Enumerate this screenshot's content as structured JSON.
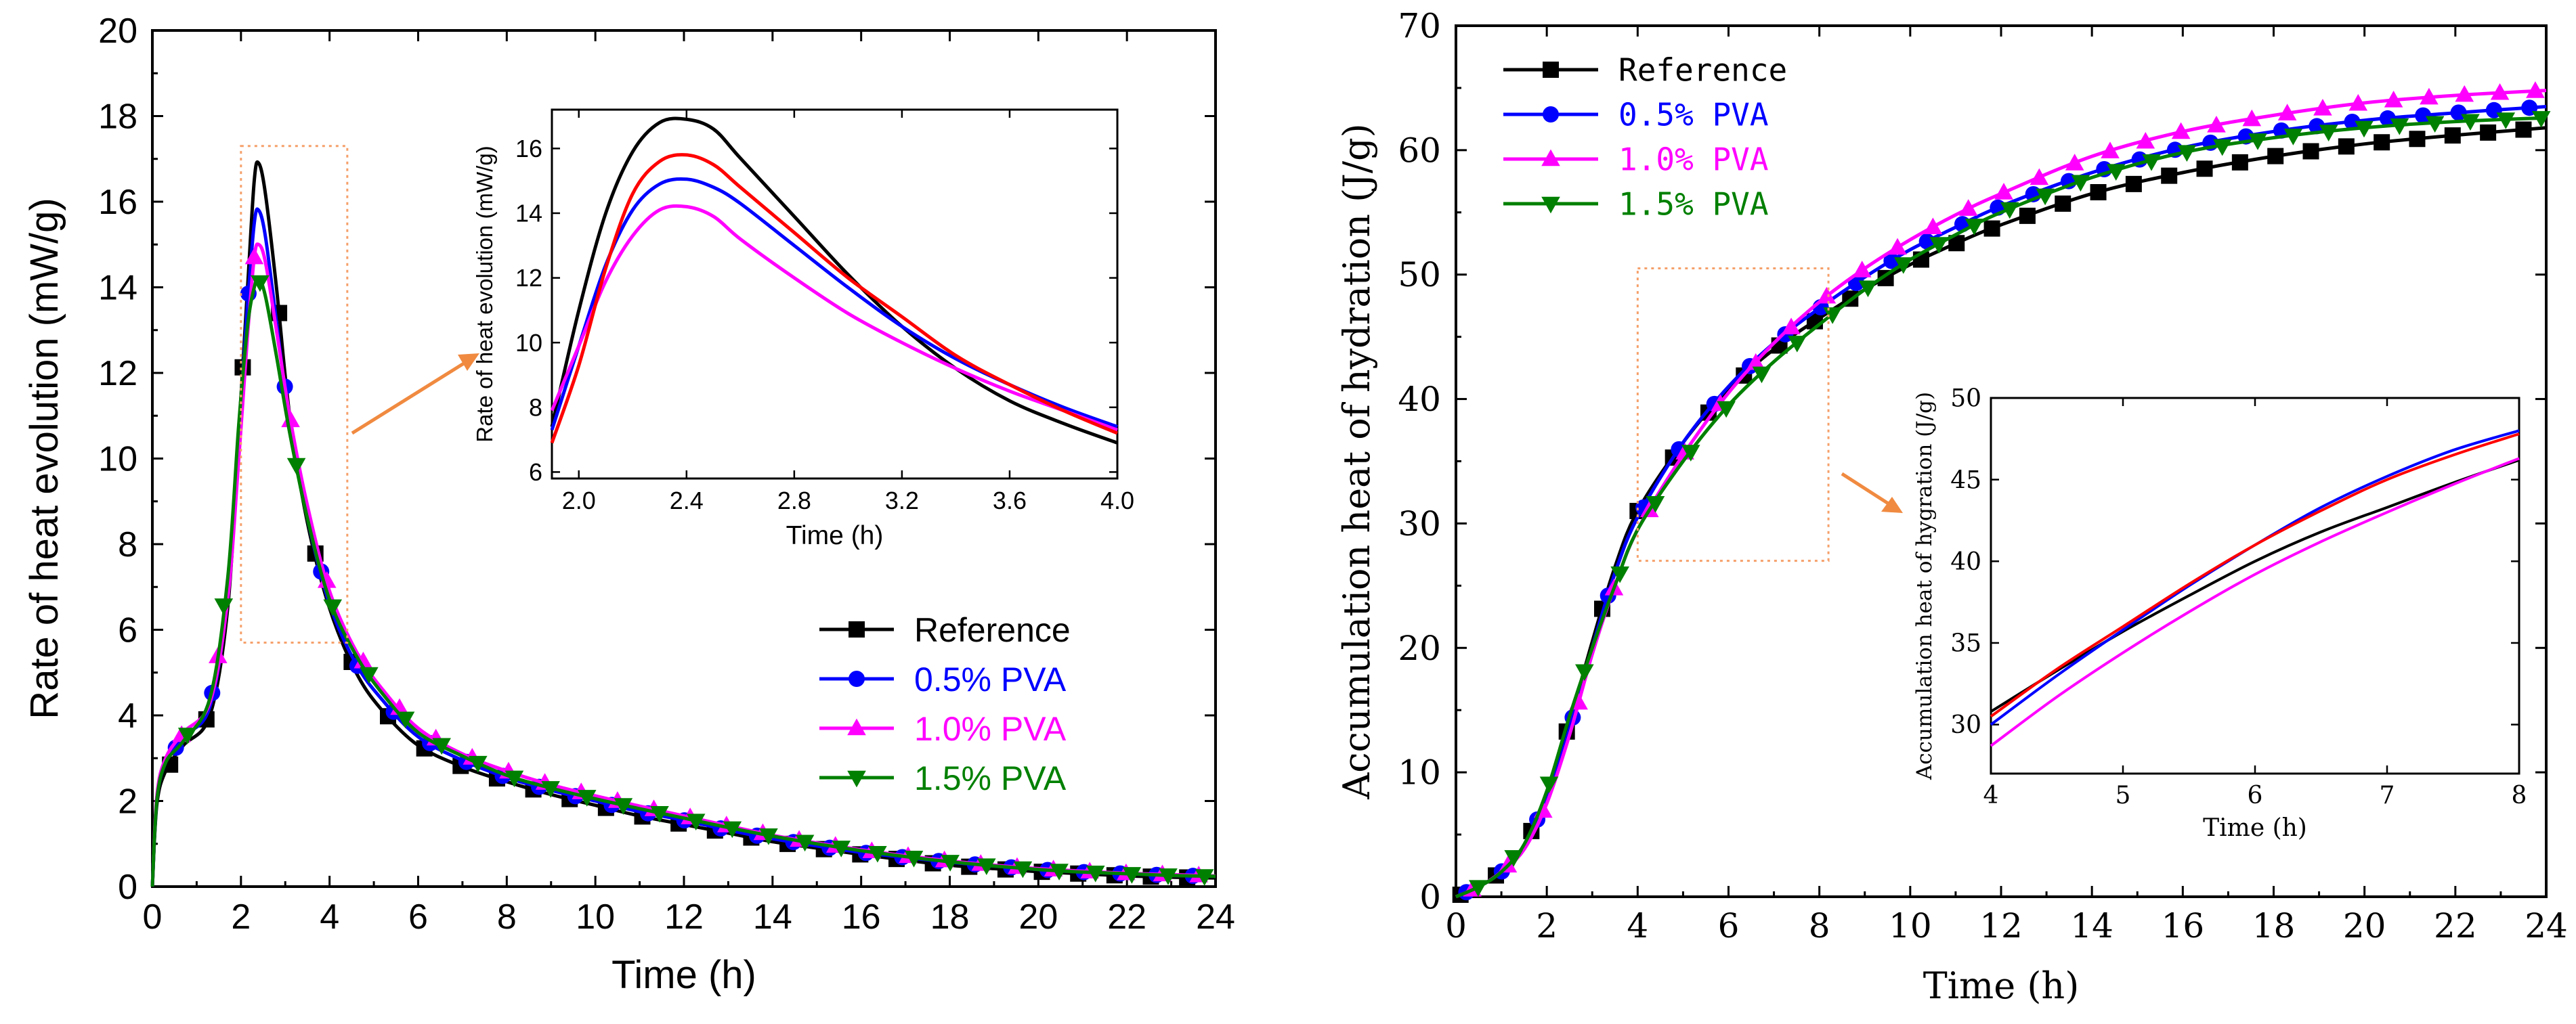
{
  "chart_data": [
    {
      "id": "left",
      "type": "line",
      "title": "",
      "xlabel": "Time (h)",
      "ylabel": "Rate of heat evolution (mW/g)",
      "xlim": [
        0,
        24
      ],
      "ylim": [
        0,
        20
      ],
      "xticks": [
        0,
        2,
        4,
        6,
        8,
        10,
        12,
        14,
        16,
        18,
        20,
        22,
        24
      ],
      "yticks": [
        0,
        2,
        4,
        6,
        8,
        10,
        12,
        14,
        16,
        18,
        20
      ],
      "grid": false,
      "legend_position": "lower-right",
      "series": [
        {
          "name": "Reference",
          "color": "#000000",
          "marker": "square",
          "x": [
            0,
            0.1,
            0.3,
            0.7,
            1.3,
            1.7,
            1.95,
            2.15,
            2.3,
            2.4,
            2.55,
            2.8,
            3.1,
            3.5,
            4.0,
            4.6,
            5.2,
            6.0,
            7.0,
            8.0,
            9.0,
            10.0,
            11.0,
            12.0,
            13.0,
            14.0,
            15.0,
            16.0,
            17.0,
            18.0,
            19.0,
            20.0,
            21.0,
            22.0,
            23.0,
            24.0
          ],
          "y": [
            0,
            1.9,
            2.7,
            3.3,
            4.0,
            6.5,
            10.6,
            14.0,
            16.5,
            16.9,
            16.2,
            14.0,
            11.0,
            8.5,
            6.5,
            5.0,
            4.1,
            3.3,
            2.8,
            2.45,
            2.15,
            1.9,
            1.65,
            1.45,
            1.25,
            1.05,
            0.9,
            0.75,
            0.62,
            0.5,
            0.42,
            0.35,
            0.3,
            0.25,
            0.22,
            0.2
          ]
        },
        {
          "name": "0.5% PVA",
          "color": "#0000ff",
          "marker": "circle",
          "x": [
            0,
            0.1,
            0.3,
            0.7,
            1.3,
            1.7,
            1.95,
            2.15,
            2.3,
            2.4,
            2.55,
            2.8,
            3.1,
            3.5,
            4.0,
            4.6,
            5.2,
            6.0,
            7.0,
            8.0,
            9.0,
            10.0,
            11.0,
            12.0,
            13.0,
            14.0,
            15.0,
            16.0,
            17.0,
            18.0,
            19.0,
            20.0,
            21.0,
            22.0,
            23.0,
            24.0
          ],
          "y": [
            0,
            2.0,
            2.9,
            3.5,
            4.2,
            6.8,
            10.6,
            13.6,
            15.5,
            15.8,
            15.2,
            13.2,
            10.8,
            8.6,
            6.6,
            5.2,
            4.35,
            3.5,
            2.95,
            2.55,
            2.25,
            2.0,
            1.75,
            1.55,
            1.32,
            1.12,
            0.95,
            0.8,
            0.68,
            0.57,
            0.48,
            0.4,
            0.34,
            0.3,
            0.26,
            0.24
          ]
        },
        {
          "name": "1.0% PVA",
          "color": "#ff00ff",
          "marker": "triangle-up",
          "x": [
            0,
            0.1,
            0.3,
            0.7,
            1.3,
            1.7,
            1.95,
            2.15,
            2.3,
            2.4,
            2.55,
            2.8,
            3.1,
            3.5,
            4.0,
            4.6,
            5.2,
            6.0,
            7.0,
            8.0,
            9.0,
            10.0,
            11.0,
            12.0,
            13.0,
            14.0,
            15.0,
            16.0,
            17.0,
            18.0,
            19.0,
            20.0,
            21.0,
            22.0,
            23.0,
            24.0
          ],
          "y": [
            0,
            2.1,
            3.0,
            3.6,
            4.3,
            6.7,
            10.0,
            12.9,
            14.7,
            15.0,
            14.6,
            13.0,
            11.0,
            8.9,
            6.9,
            5.5,
            4.6,
            3.7,
            3.1,
            2.7,
            2.38,
            2.12,
            1.88,
            1.65,
            1.42,
            1.2,
            1.02,
            0.86,
            0.72,
            0.6,
            0.5,
            0.42,
            0.36,
            0.31,
            0.28,
            0.25
          ]
        },
        {
          "name": "1.5% PVA",
          "color": "#008000",
          "marker": "triangle-down",
          "x": [
            0,
            0.1,
            0.3,
            0.7,
            1.3,
            1.7,
            1.95,
            2.15,
            2.3,
            2.4,
            2.55,
            2.8,
            3.1,
            3.5,
            4.0,
            4.6,
            5.2,
            6.0,
            7.0,
            8.0,
            9.0,
            10.0,
            11.0,
            12.0,
            13.0,
            14.0,
            15.0,
            16.0,
            17.0,
            18.0,
            19.0,
            20.0,
            21.0,
            22.0,
            23.0,
            24.0
          ],
          "y": [
            0,
            2.0,
            2.9,
            3.4,
            4.4,
            7.2,
            10.8,
            13.1,
            14.0,
            14.2,
            13.8,
            12.4,
            10.6,
            8.6,
            6.7,
            5.4,
            4.5,
            3.6,
            3.05,
            2.6,
            2.3,
            2.05,
            1.82,
            1.6,
            1.38,
            1.18,
            1.0,
            0.84,
            0.7,
            0.58,
            0.48,
            0.4,
            0.34,
            0.3,
            0.26,
            0.24
          ]
        }
      ],
      "inset": {
        "xlabel": "Time (h)",
        "ylabel": "Rate of heat evolution (mW/g)",
        "xlim": [
          1.9,
          4.0
        ],
        "ylim": [
          5.8,
          17.2
        ],
        "xticks": [
          2.0,
          2.4,
          2.8,
          3.2,
          3.6,
          4.0
        ],
        "xtick_labels": [
          "2.0",
          "2.4",
          "2.8",
          "3.2",
          "3.6",
          "4.0"
        ],
        "yticks": [
          6,
          8,
          10,
          12,
          14,
          16
        ],
        "series": [
          {
            "name": "Reference",
            "color": "#000000",
            "x": [
              1.9,
              2.0,
              2.1,
              2.2,
              2.3,
              2.4,
              2.5,
              2.6,
              2.8,
              3.0,
              3.2,
              3.4,
              3.6,
              3.8,
              4.0
            ],
            "y": [
              7.4,
              11.0,
              14.0,
              15.9,
              16.8,
              16.9,
              16.6,
              15.7,
              13.9,
              12.1,
              10.5,
              9.2,
              8.2,
              7.5,
              6.9
            ]
          },
          {
            "name": "0.5% PVA",
            "color": "#0000ff",
            "x": [
              1.9,
              2.0,
              2.1,
              2.2,
              2.3,
              2.4,
              2.5,
              2.6,
              2.8,
              3.0,
              3.2,
              3.4,
              3.6,
              3.8,
              4.0
            ],
            "y": [
              7.3,
              9.9,
              12.4,
              14.1,
              14.9,
              15.05,
              14.8,
              14.3,
              13.0,
              11.7,
              10.5,
              9.5,
              8.7,
              8.0,
              7.4
            ]
          },
          {
            "name": "1.0% PVA",
            "color": "#ff00ff",
            "x": [
              1.9,
              2.0,
              2.1,
              2.2,
              2.3,
              2.4,
              2.5,
              2.6,
              2.8,
              3.0,
              3.2,
              3.4,
              3.6,
              3.8,
              4.0
            ],
            "y": [
              7.9,
              9.9,
              11.9,
              13.3,
              14.1,
              14.2,
              13.9,
              13.2,
              12.0,
              10.9,
              10.0,
              9.2,
              8.5,
              7.9,
              7.3
            ]
          },
          {
            "name": "1.5% PVA",
            "color": "#ff0000",
            "x": [
              1.9,
              2.0,
              2.1,
              2.2,
              2.3,
              2.4,
              2.5,
              2.6,
              2.8,
              3.0,
              3.2,
              3.4,
              3.6,
              3.8,
              4.0
            ],
            "y": [
              6.9,
              9.3,
              12.3,
              14.6,
              15.6,
              15.8,
              15.5,
              14.8,
              13.4,
              12.0,
              10.8,
              9.6,
              8.7,
              7.9,
              7.2
            ]
          }
        ]
      }
    },
    {
      "id": "right",
      "type": "line",
      "title": "",
      "xlabel": "Time (h)",
      "ylabel": "Accumulation heat of hydration (J/g)",
      "xlim": [
        0,
        24
      ],
      "ylim": [
        0,
        70
      ],
      "xticks": [
        0,
        2,
        4,
        6,
        8,
        10,
        12,
        14,
        16,
        18,
        20,
        22,
        24
      ],
      "yticks": [
        0,
        10,
        20,
        30,
        40,
        50,
        60,
        70
      ],
      "grid": false,
      "legend_position": "top-left",
      "series": [
        {
          "name": "Reference",
          "color": "#000000",
          "marker": "square",
          "x": [
            0,
            0.5,
            1.0,
            1.5,
            2.0,
            2.5,
            3.0,
            3.5,
            4.0,
            5.0,
            6.0,
            7.0,
            8.0,
            9.0,
            10.0,
            11.0,
            12.0,
            14.0,
            16.0,
            18.0,
            20.0,
            22.0,
            24.0
          ],
          "y": [
            0,
            0.8,
            2.0,
            4.0,
            8.0,
            14.0,
            20.5,
            26.5,
            31.0,
            36.5,
            40.8,
            44.0,
            46.5,
            48.8,
            50.8,
            52.5,
            54.0,
            56.5,
            58.2,
            59.5,
            60.5,
            61.2,
            61.8
          ]
        },
        {
          "name": "0.5% PVA",
          "color": "#0000ff",
          "marker": "circle",
          "x": [
            0,
            0.5,
            1.0,
            1.5,
            2.0,
            2.5,
            3.0,
            3.5,
            4.0,
            5.0,
            6.0,
            7.0,
            8.0,
            9.0,
            10.0,
            11.0,
            12.0,
            14.0,
            16.0,
            18.0,
            20.0,
            22.0,
            24.0
          ],
          "y": [
            0,
            0.8,
            2.0,
            4.0,
            7.8,
            13.5,
            20.0,
            26.0,
            30.5,
            36.5,
            41.0,
            44.5,
            47.3,
            49.8,
            52.0,
            53.8,
            55.5,
            58.2,
            60.2,
            61.5,
            62.4,
            63.0,
            63.5
          ]
        },
        {
          "name": "1.0% PVA",
          "color": "#ff00ff",
          "marker": "triangle-up",
          "x": [
            0,
            0.5,
            1.0,
            1.5,
            2.0,
            2.5,
            3.0,
            3.5,
            4.0,
            5.0,
            6.0,
            7.0,
            8.0,
            9.0,
            10.0,
            11.0,
            12.0,
            14.0,
            16.0,
            18.0,
            20.0,
            22.0,
            24.0
          ],
          "y": [
            0,
            0.8,
            2.0,
            3.8,
            7.5,
            13.0,
            19.5,
            25.0,
            29.5,
            35.5,
            40.5,
            44.5,
            47.8,
            50.5,
            52.8,
            54.8,
            56.5,
            59.5,
            61.5,
            62.8,
            63.8,
            64.4,
            64.8
          ]
        },
        {
          "name": "1.5% PVA",
          "color": "#008000",
          "marker": "triangle-down",
          "x": [
            0,
            0.5,
            1.0,
            1.5,
            2.0,
            2.5,
            3.0,
            3.5,
            4.0,
            5.0,
            6.0,
            7.0,
            8.0,
            9.0,
            10.0,
            11.0,
            12.0,
            14.0,
            16.0,
            18.0,
            20.0,
            22.0,
            24.0
          ],
          "y": [
            0,
            0.8,
            2.0,
            4.2,
            8.5,
            14.5,
            20.0,
            25.0,
            29.5,
            35.0,
            39.5,
            43.0,
            46.0,
            48.8,
            51.2,
            53.2,
            55.0,
            57.8,
            59.8,
            61.0,
            61.8,
            62.3,
            62.6
          ]
        }
      ],
      "inset": {
        "xlabel": "Time (h)",
        "ylabel": "Accumulation heat of hygration (J/g)",
        "xlim": [
          4,
          8
        ],
        "ylim": [
          27,
          50
        ],
        "xticks": [
          4,
          5,
          6,
          7,
          8
        ],
        "xtick_labels": [
          "4",
          "5",
          "6",
          "7",
          "8"
        ],
        "yticks": [
          30,
          35,
          40,
          45,
          50
        ],
        "series": [
          {
            "name": "Reference",
            "color": "#000000",
            "x": [
              4,
              4.5,
              5,
              5.5,
              6,
              6.5,
              7,
              7.5,
              8
            ],
            "y": [
              30.8,
              33.3,
              35.7,
              37.9,
              40.0,
              41.8,
              43.3,
              44.8,
              46.2
            ]
          },
          {
            "name": "0.5% PVA",
            "color": "#0000ff",
            "x": [
              4,
              4.5,
              5,
              5.5,
              6,
              6.5,
              7,
              7.5,
              8
            ],
            "y": [
              30.0,
              33.0,
              35.8,
              38.5,
              41.0,
              43.3,
              45.2,
              46.8,
              48.0
            ]
          },
          {
            "name": "1.0% PVA",
            "color": "#ff00ff",
            "x": [
              4,
              4.5,
              5,
              5.5,
              6,
              6.5,
              7,
              7.5,
              8
            ],
            "y": [
              28.7,
              31.7,
              34.4,
              36.9,
              39.2,
              41.2,
              43.0,
              44.7,
              46.3
            ]
          },
          {
            "name": "1.5% PVA",
            "color": "#ff0000",
            "x": [
              4,
              4.5,
              5,
              5.5,
              6,
              6.5,
              7,
              7.5,
              8
            ],
            "y": [
              30.5,
              33.4,
              36.0,
              38.6,
              41.0,
              43.1,
              45.0,
              46.5,
              47.8
            ]
          }
        ]
      }
    }
  ]
}
